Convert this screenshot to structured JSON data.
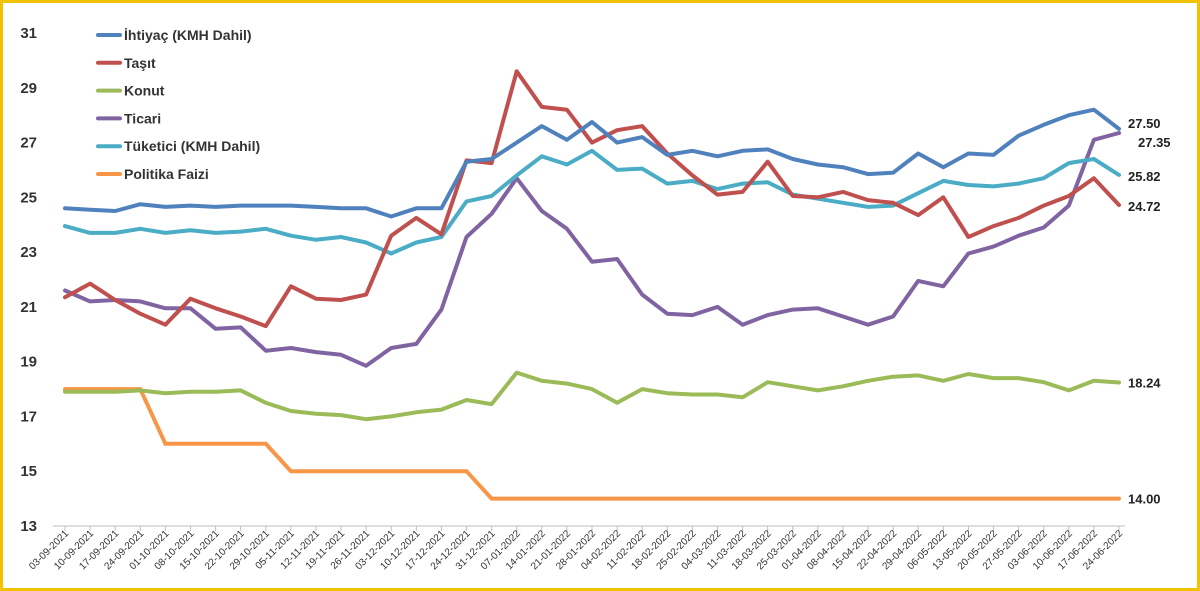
{
  "chart_data": {
    "type": "line",
    "title": "",
    "xlabel": "",
    "ylabel": "",
    "ylim": [
      13,
      31
    ],
    "yticks": [
      13,
      15,
      17,
      19,
      21,
      23,
      25,
      27,
      29,
      31
    ],
    "grid": false,
    "legend_position": "top-left",
    "x": [
      "03-09-2021",
      "10-09-2021",
      "17-09-2021",
      "24-09-2021",
      "01-10-2021",
      "08-10-2021",
      "15-10-2021",
      "22-10-2021",
      "29-10-2021",
      "05-11-2021",
      "12-11-2021",
      "19-11-2021",
      "26-11-2021",
      "03-12-2021",
      "10-12-2021",
      "17-12-2021",
      "24-12-2021",
      "31-12-2021",
      "07-01-2022",
      "14-01-2022",
      "21-01-2022",
      "28-01-2022",
      "04-02-2022",
      "11-02-2022",
      "18-02-2022",
      "25-02-2022",
      "04-03-2022",
      "11-03-2022",
      "18-03-2022",
      "25-03-2022",
      "01-04-2022",
      "08-04-2022",
      "15-04-2022",
      "22-04-2022",
      "29-04-2022",
      "06-05-2022",
      "13-05-2022",
      "20-05-2022",
      "27-05-2022",
      "03-06-2022",
      "10-06-2022",
      "17-06-2022",
      "24-06-2022"
    ],
    "series": [
      {
        "name": "İhtiyaç (KMH Dahil)",
        "color": "#4f81bd",
        "end_label": "27.50",
        "values": [
          24.6,
          24.55,
          24.5,
          24.75,
          24.65,
          24.7,
          24.65,
          24.7,
          24.7,
          24.7,
          24.65,
          24.6,
          24.6,
          24.3,
          24.6,
          24.6,
          26.3,
          26.4,
          27.0,
          27.6,
          27.1,
          27.75,
          27.0,
          27.2,
          26.55,
          26.7,
          26.5,
          26.7,
          26.75,
          26.4,
          26.2,
          26.1,
          25.85,
          25.9,
          26.6,
          26.1,
          26.6,
          26.55,
          27.25,
          27.65,
          28.0,
          28.2,
          27.5
        ]
      },
      {
        "name": "Taşıt",
        "color": "#c0504d",
        "end_label": "24.72",
        "values": [
          21.35,
          21.85,
          21.25,
          20.75,
          20.35,
          21.3,
          20.95,
          20.65,
          20.3,
          21.75,
          21.3,
          21.25,
          21.45,
          23.6,
          24.25,
          23.65,
          26.35,
          26.25,
          29.6,
          28.3,
          28.2,
          27.0,
          27.45,
          27.6,
          26.6,
          25.8,
          25.1,
          25.2,
          26.3,
          25.05,
          25.0,
          25.2,
          24.9,
          24.8,
          24.35,
          25.0,
          23.55,
          23.95,
          24.25,
          24.7,
          25.05,
          25.7,
          24.72
        ]
      },
      {
        "name": "Konut",
        "color": "#9bbb59",
        "end_label": "18.24",
        "values": [
          17.9,
          17.9,
          17.9,
          17.95,
          17.85,
          17.9,
          17.9,
          17.95,
          17.5,
          17.2,
          17.1,
          17.05,
          16.9,
          17.0,
          17.15,
          17.25,
          17.6,
          17.45,
          18.6,
          18.3,
          18.2,
          18.0,
          17.5,
          18.0,
          17.85,
          17.8,
          17.8,
          17.7,
          18.25,
          18.1,
          17.95,
          18.1,
          18.3,
          18.45,
          18.5,
          18.3,
          18.55,
          18.4,
          18.4,
          18.25,
          17.95,
          18.3,
          18.24
        ]
      },
      {
        "name": "Ticari",
        "color": "#8064a2",
        "end_label": "27.35",
        "values": [
          21.6,
          21.2,
          21.25,
          21.2,
          20.95,
          20.95,
          20.2,
          20.25,
          19.4,
          19.5,
          19.35,
          19.25,
          18.85,
          19.5,
          19.65,
          20.9,
          23.55,
          24.4,
          25.7,
          24.5,
          23.85,
          22.65,
          22.75,
          21.45,
          20.75,
          20.7,
          21.0,
          20.35,
          20.7,
          20.9,
          20.95,
          20.65,
          20.35,
          20.65,
          21.95,
          21.75,
          22.95,
          23.2,
          23.6,
          23.9,
          24.7,
          27.1,
          27.35
        ]
      },
      {
        "name": "Tüketici (KMH Dahil)",
        "color": "#4bacc6",
        "end_label": "25.82",
        "values": [
          23.95,
          23.7,
          23.7,
          23.85,
          23.7,
          23.8,
          23.7,
          23.75,
          23.85,
          23.6,
          23.45,
          23.55,
          23.35,
          22.95,
          23.35,
          23.55,
          24.85,
          25.05,
          25.8,
          26.5,
          26.2,
          26.7,
          26.0,
          26.05,
          25.5,
          25.6,
          25.3,
          25.5,
          25.55,
          25.1,
          24.95,
          24.8,
          24.65,
          24.7,
          25.15,
          25.6,
          25.45,
          25.4,
          25.5,
          25.7,
          26.25,
          26.4,
          25.82
        ]
      },
      {
        "name": "Politika Faizi",
        "color": "#f79646",
        "end_label": "14.00",
        "values": [
          18,
          18,
          18,
          18,
          16,
          16,
          16,
          16,
          16,
          15,
          15,
          15,
          15,
          15,
          15,
          15,
          15,
          14,
          14,
          14,
          14,
          14,
          14,
          14,
          14,
          14,
          14,
          14,
          14,
          14,
          14,
          14,
          14,
          14,
          14,
          14,
          14,
          14,
          14,
          14,
          14,
          14,
          14
        ]
      }
    ]
  }
}
